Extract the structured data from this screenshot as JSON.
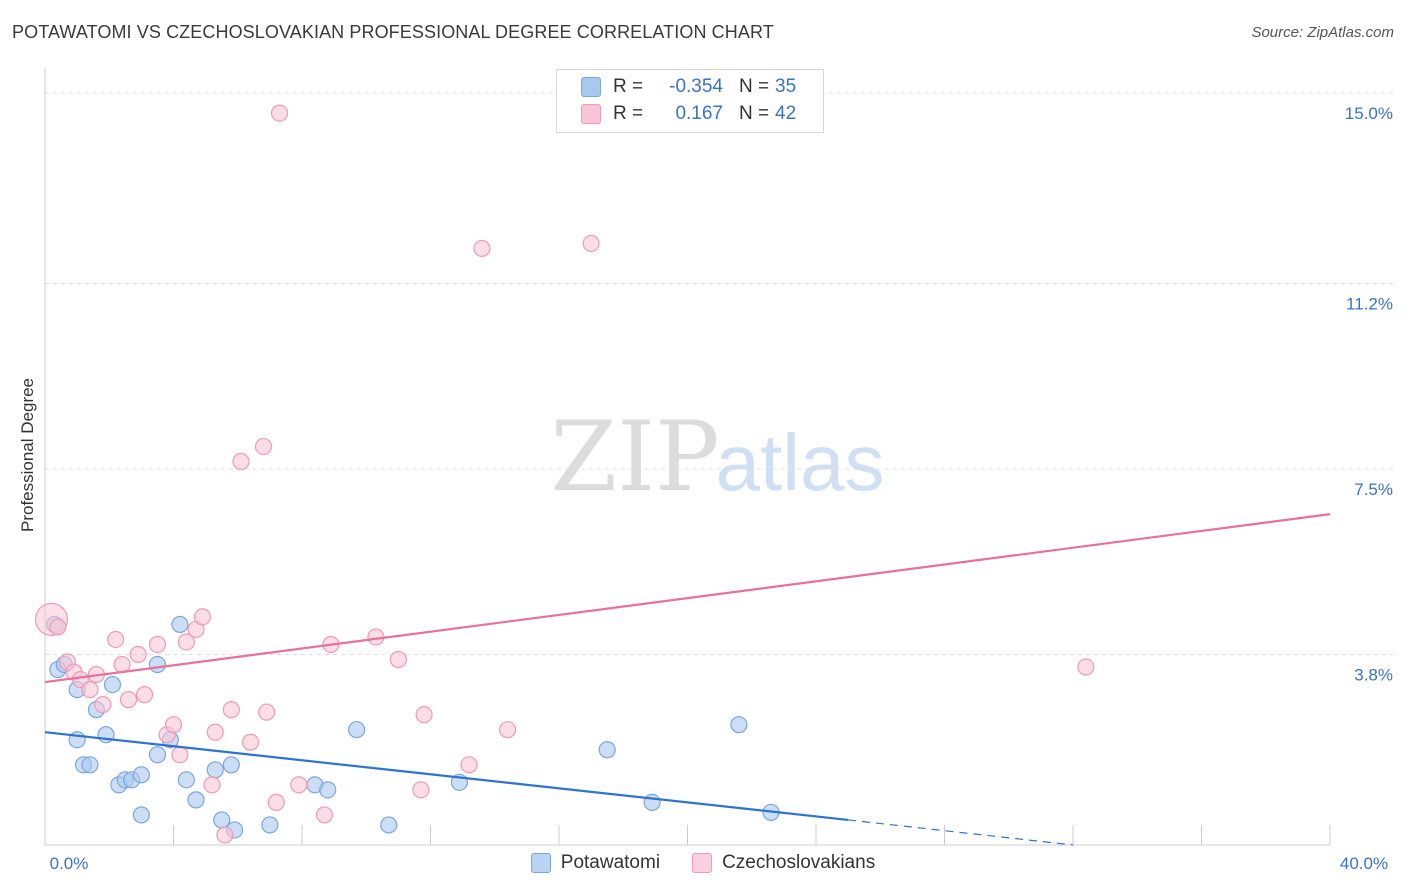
{
  "header": {
    "title": "POTAWATOMI VS CZECHOSLOVAKIAN PROFESSIONAL DEGREE CORRELATION CHART",
    "source": "Source: ZipAtlas.com"
  },
  "watermark": {
    "zip": "ZIP",
    "atlas": "atlas"
  },
  "legend_top": {
    "rows": [
      {
        "r_label": "R =",
        "r_value": "-0.354",
        "n_label": "N =",
        "n_value": "35",
        "color": "#a8c8f0",
        "border": "#7aa6e0"
      },
      {
        "r_label": "R =",
        "r_value": "0.167",
        "n_label": "N =",
        "n_value": "42",
        "color": "#f8c6d6",
        "border": "#ef9ab6"
      }
    ]
  },
  "legend_bottom": {
    "items": [
      {
        "label": "Potawatomi",
        "color": "#b9d3f3",
        "border": "#7aa6e0"
      },
      {
        "label": "Czechoslovakians",
        "color": "#fad0de",
        "border": "#ef9ab6"
      }
    ]
  },
  "chart_data": {
    "type": "scatter",
    "title": "POTAWATOMI VS CZECHOSLOVAKIAN PROFESSIONAL DEGREE CORRELATION CHART",
    "xlabel": "",
    "ylabel": "Professional Degree",
    "xlim": [
      0,
      40
    ],
    "ylim": [
      0,
      15.3
    ],
    "x_tick_labels": [
      "0.0%",
      "40.0%"
    ],
    "y_ticks": [
      3.8,
      7.5,
      11.2,
      15.0
    ],
    "y_tick_labels": [
      "3.8%",
      "7.5%",
      "11.2%",
      "15.0%"
    ],
    "grid": true,
    "accent_blue": "#2f72d0",
    "accent_pink": "#e8709a",
    "series": [
      {
        "name": "Potawatomi",
        "color": "#7aa6e0",
        "fill": "#a8c8f0",
        "points": [
          [
            0.3,
            4.4
          ],
          [
            0.4,
            3.5
          ],
          [
            0.6,
            3.6
          ],
          [
            1.0,
            2.1
          ],
          [
            1.0,
            3.1
          ],
          [
            1.2,
            1.6
          ],
          [
            1.4,
            1.6
          ],
          [
            1.6,
            2.7
          ],
          [
            1.9,
            2.2
          ],
          [
            2.1,
            3.2
          ],
          [
            2.3,
            1.2
          ],
          [
            2.5,
            1.3
          ],
          [
            2.7,
            1.3
          ],
          [
            3.0,
            1.4
          ],
          [
            3.0,
            0.6
          ],
          [
            3.5,
            1.8
          ],
          [
            3.5,
            3.6
          ],
          [
            3.9,
            2.1
          ],
          [
            4.2,
            4.4
          ],
          [
            4.4,
            1.3
          ],
          [
            4.7,
            0.9
          ],
          [
            5.3,
            1.5
          ],
          [
            5.5,
            0.5
          ],
          [
            5.8,
            1.6
          ],
          [
            5.9,
            0.3
          ],
          [
            7.0,
            0.4
          ],
          [
            8.4,
            1.2
          ],
          [
            8.8,
            1.1
          ],
          [
            9.7,
            2.3
          ],
          [
            10.7,
            0.4
          ],
          [
            12.9,
            1.25
          ],
          [
            17.5,
            1.9
          ],
          [
            18.9,
            0.85
          ],
          [
            21.6,
            2.4
          ],
          [
            22.6,
            0.65
          ]
        ]
      },
      {
        "name": "Czechoslovakians",
        "color": "#ef9ab6",
        "fill": "#f8c6d6",
        "points": [
          [
            0.2,
            4.5
          ],
          [
            0.4,
            4.35
          ],
          [
            0.7,
            3.65
          ],
          [
            0.9,
            3.45
          ],
          [
            1.1,
            3.3
          ],
          [
            1.4,
            3.1
          ],
          [
            1.6,
            3.4
          ],
          [
            1.8,
            2.8
          ],
          [
            2.2,
            4.1
          ],
          [
            2.4,
            3.6
          ],
          [
            2.6,
            2.9
          ],
          [
            2.9,
            3.8
          ],
          [
            3.1,
            3.0
          ],
          [
            3.5,
            4.0
          ],
          [
            3.8,
            2.2
          ],
          [
            4.0,
            2.4
          ],
          [
            4.2,
            1.8
          ],
          [
            4.4,
            4.05
          ],
          [
            4.7,
            4.3
          ],
          [
            4.9,
            4.55
          ],
          [
            5.2,
            1.2
          ],
          [
            5.3,
            2.25
          ],
          [
            5.6,
            0.2
          ],
          [
            5.8,
            2.7
          ],
          [
            6.1,
            7.65
          ],
          [
            6.4,
            2.05
          ],
          [
            6.8,
            7.95
          ],
          [
            6.9,
            2.65
          ],
          [
            7.2,
            0.85
          ],
          [
            7.3,
            14.6
          ],
          [
            7.9,
            1.2
          ],
          [
            8.7,
            0.6
          ],
          [
            8.9,
            4.0
          ],
          [
            10.3,
            4.15
          ],
          [
            11.0,
            3.7
          ],
          [
            11.7,
            1.1
          ],
          [
            11.8,
            2.6
          ],
          [
            13.2,
            1.6
          ],
          [
            13.6,
            11.9
          ],
          [
            14.4,
            2.3
          ],
          [
            17.0,
            12.0
          ],
          [
            32.4,
            3.55
          ]
        ]
      }
    ],
    "trend_lines": [
      {
        "series": "Potawatomi",
        "x": [
          0,
          25.0
        ],
        "y": [
          2.25,
          0.5
        ],
        "dashed_to": [
          32.0,
          0.0
        ]
      },
      {
        "series": "Czechoslovakians",
        "x": [
          0,
          40.0
        ],
        "y": [
          3.25,
          6.6
        ]
      }
    ]
  }
}
